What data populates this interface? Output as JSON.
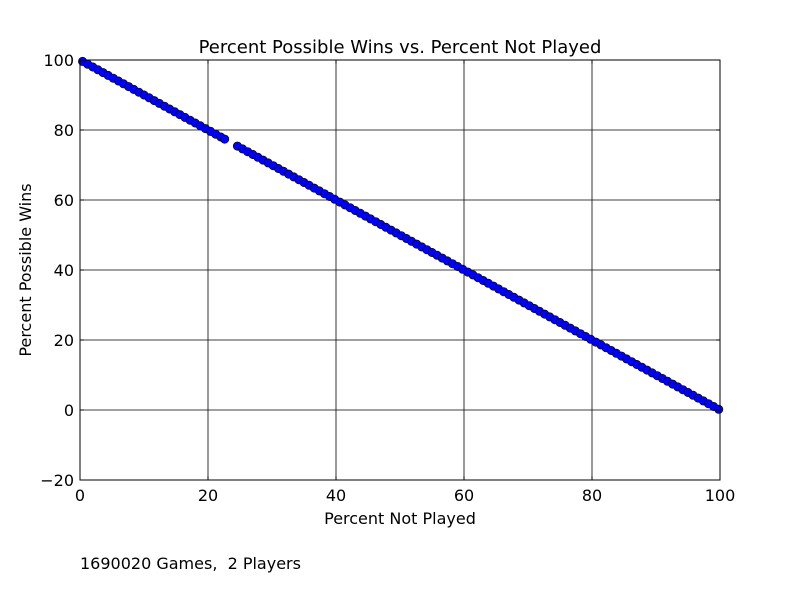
{
  "chart_data": {
    "type": "scatter",
    "title": "Percent Possible Wins vs. Percent Not Played",
    "xlabel": "Percent Not Played",
    "ylabel": "Percent Possible Wins",
    "xlim": [
      0,
      100
    ],
    "ylim": [
      -20,
      100
    ],
    "xticks": [
      0,
      20,
      40,
      60,
      80,
      100
    ],
    "yticks": [
      -20,
      0,
      20,
      40,
      60,
      80,
      100
    ],
    "xtick_labels": [
      "0",
      "20",
      "40",
      "60",
      "80",
      "100"
    ],
    "ytick_labels": [
      "−20",
      "0",
      "20",
      "40",
      "60",
      "80",
      "100"
    ],
    "grid": true,
    "marker_color": "#0000ff",
    "marker_edge_color": "#000000",
    "points": [
      [
        0.4,
        99.6
      ],
      [
        1.2,
        98.8
      ],
      [
        2.0,
        98.0
      ],
      [
        2.8,
        97.2
      ],
      [
        3.6,
        96.4
      ],
      [
        4.4,
        95.6
      ],
      [
        5.2,
        94.8
      ],
      [
        6.0,
        94.0
      ],
      [
        6.8,
        93.2
      ],
      [
        7.6,
        92.4
      ],
      [
        8.4,
        91.6
      ],
      [
        9.2,
        90.8
      ],
      [
        10.0,
        90.0
      ],
      [
        10.8,
        89.2
      ],
      [
        11.6,
        88.4
      ],
      [
        12.4,
        87.6
      ],
      [
        13.2,
        86.8
      ],
      [
        14.0,
        86.0
      ],
      [
        14.8,
        85.2
      ],
      [
        15.6,
        84.4
      ],
      [
        16.4,
        83.6
      ],
      [
        17.2,
        82.8
      ],
      [
        18.0,
        82.0
      ],
      [
        18.8,
        81.2
      ],
      [
        19.6,
        80.4
      ],
      [
        20.4,
        79.6
      ],
      [
        21.2,
        78.8
      ],
      [
        22.0,
        78.0
      ],
      [
        22.6,
        77.4
      ],
      [
        24.6,
        75.4
      ],
      [
        25.4,
        74.6
      ],
      [
        26.2,
        73.8
      ],
      [
        27.0,
        73.0
      ],
      [
        27.8,
        72.2
      ],
      [
        28.6,
        71.4
      ],
      [
        29.4,
        70.6
      ],
      [
        30.2,
        69.8
      ],
      [
        31.0,
        69.0
      ],
      [
        31.8,
        68.2
      ],
      [
        32.6,
        67.4
      ],
      [
        33.4,
        66.6
      ],
      [
        34.2,
        65.8
      ],
      [
        35.0,
        65.0
      ],
      [
        35.8,
        64.2
      ],
      [
        36.6,
        63.4
      ],
      [
        37.4,
        62.6
      ],
      [
        38.2,
        61.8
      ],
      [
        39.0,
        61.0
      ],
      [
        39.8,
        60.2
      ],
      [
        40.6,
        59.4
      ],
      [
        41.4,
        58.6
      ],
      [
        42.2,
        57.8
      ],
      [
        43.0,
        57.0
      ],
      [
        43.8,
        56.2
      ],
      [
        44.6,
        55.4
      ],
      [
        45.4,
        54.6
      ],
      [
        46.2,
        53.8
      ],
      [
        47.0,
        53.0
      ],
      [
        47.8,
        52.2
      ],
      [
        48.6,
        51.4
      ],
      [
        49.4,
        50.6
      ],
      [
        50.2,
        49.8
      ],
      [
        51.0,
        49.0
      ],
      [
        51.8,
        48.2
      ],
      [
        52.6,
        47.4
      ],
      [
        53.4,
        46.6
      ],
      [
        54.2,
        45.8
      ],
      [
        55.0,
        45.0
      ],
      [
        55.8,
        44.2
      ],
      [
        56.6,
        43.4
      ],
      [
        57.4,
        42.6
      ],
      [
        58.2,
        41.8
      ],
      [
        59.0,
        41.0
      ],
      [
        59.8,
        40.2
      ],
      [
        60.6,
        39.4
      ],
      [
        61.4,
        38.6
      ],
      [
        62.2,
        37.8
      ],
      [
        63.0,
        37.0
      ],
      [
        63.8,
        36.2
      ],
      [
        64.6,
        35.4
      ],
      [
        65.4,
        34.6
      ],
      [
        66.2,
        33.8
      ],
      [
        67.0,
        33.0
      ],
      [
        67.8,
        32.2
      ],
      [
        68.6,
        31.4
      ],
      [
        69.4,
        30.6
      ],
      [
        70.2,
        29.8
      ],
      [
        71.0,
        29.0
      ],
      [
        71.8,
        28.2
      ],
      [
        72.6,
        27.4
      ],
      [
        73.4,
        26.6
      ],
      [
        74.2,
        25.8
      ],
      [
        75.0,
        25.0
      ],
      [
        75.8,
        24.2
      ],
      [
        76.6,
        23.4
      ],
      [
        77.4,
        22.6
      ],
      [
        78.2,
        21.8
      ],
      [
        79.0,
        21.0
      ],
      [
        79.8,
        20.2
      ],
      [
        80.6,
        19.4
      ],
      [
        81.4,
        18.6
      ],
      [
        82.2,
        17.8
      ],
      [
        83.0,
        17.0
      ],
      [
        83.8,
        16.2
      ],
      [
        84.6,
        15.4
      ],
      [
        85.4,
        14.6
      ],
      [
        86.2,
        13.8
      ],
      [
        87.0,
        13.0
      ],
      [
        87.8,
        12.2
      ],
      [
        88.6,
        11.4
      ],
      [
        89.4,
        10.6
      ],
      [
        90.2,
        9.8
      ],
      [
        91.0,
        9.0
      ],
      [
        91.8,
        8.2
      ],
      [
        92.6,
        7.4
      ],
      [
        93.4,
        6.6
      ],
      [
        94.2,
        5.8
      ],
      [
        95.0,
        5.0
      ],
      [
        95.8,
        4.2
      ],
      [
        96.6,
        3.4
      ],
      [
        97.4,
        2.6
      ],
      [
        98.2,
        1.8
      ],
      [
        99.0,
        1.0
      ],
      [
        99.8,
        0.2
      ]
    ]
  },
  "footnote": "1690020 Games,  2 Players"
}
